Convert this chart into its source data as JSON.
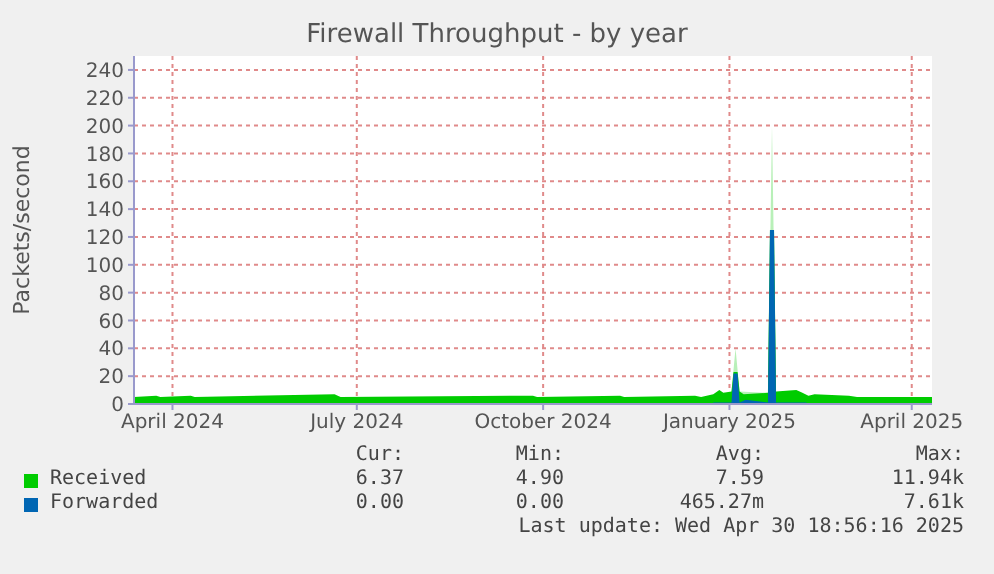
{
  "chart_data": {
    "type": "area",
    "title": "Firewall Throughput - by year",
    "ylabel": "Packets/second",
    "xlim": [
      "2024-03-13",
      "2025-04-11"
    ],
    "xticks": [
      {
        "value": "2024-04-01",
        "label": "April 2024"
      },
      {
        "value": "2024-07-01",
        "label": "July 2024"
      },
      {
        "value": "2024-10-01",
        "label": "October 2024"
      },
      {
        "value": "2025-01-01",
        "label": "January 2025"
      },
      {
        "value": "2025-04-01",
        "label": "April 2025"
      }
    ],
    "ylim": [
      0,
      250
    ],
    "yticks": [
      0,
      20,
      40,
      60,
      80,
      100,
      120,
      140,
      160,
      180,
      200,
      220,
      240
    ],
    "grid": true,
    "legend": "bottom",
    "series": [
      {
        "color": "#b8f0b8",
        "x": [
          "2025-01-02",
          "2025-01-04",
          "2025-01-06",
          "2025-01-20",
          "2025-01-22",
          "2025-01-24"
        ],
        "values": [
          9,
          40,
          9,
          8,
          200,
          8
        ]
      },
      {
        "name": "Received",
        "color": "#00cc00",
        "x": [
          "2024-03-13",
          "2024-03-24",
          "2024-03-26",
          "2024-04-10",
          "2024-04-12",
          "2024-06-20",
          "2024-06-23",
          "2024-09-26",
          "2024-09-28",
          "2024-11-08",
          "2024-11-10",
          "2024-12-15",
          "2024-12-18",
          "2024-12-24",
          "2024-12-27",
          "2024-12-29",
          "2025-01-02",
          "2025-01-03",
          "2025-01-05",
          "2025-01-06",
          "2025-01-08",
          "2025-01-20",
          "2025-01-21",
          "2025-01-23",
          "2025-01-24",
          "2025-02-03",
          "2025-02-06",
          "2025-02-09",
          "2025-02-12",
          "2025-03-01",
          "2025-03-05",
          "2025-04-11"
        ],
        "values": [
          5,
          6,
          5,
          6,
          5,
          7,
          5,
          6,
          5,
          6,
          5,
          6,
          5,
          7,
          10,
          8,
          9,
          23,
          23,
          9,
          7,
          8,
          125,
          125,
          9,
          10,
          8,
          6,
          7,
          6,
          5,
          5
        ]
      },
      {
        "name": "Forwarded",
        "color": "#0066b3",
        "x": [
          "2024-12-24",
          "2025-01-02",
          "2025-01-03",
          "2025-01-05",
          "2025-01-06",
          "2025-01-09",
          "2025-01-20",
          "2025-01-21",
          "2025-01-23",
          "2025-01-24",
          "2025-02-08"
        ],
        "values": [
          1,
          1,
          22,
          22,
          1,
          3,
          1,
          125,
          125,
          1,
          1
        ]
      }
    ],
    "annotations": [
      "Cur:",
      "Min:",
      "Avg:",
      "Max:",
      "6.37",
      "4.90",
      "7.59",
      "11.94k",
      "0.00",
      "0.00",
      "465.27m",
      "7.61k",
      "Last update: Wed Apr 30 18:56:16 2025"
    ]
  }
}
